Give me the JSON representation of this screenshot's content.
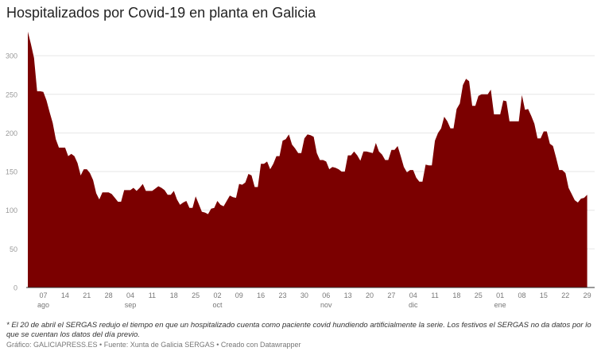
{
  "chart_data": {
    "type": "area",
    "title": "Hospitalizados por Covid-19 en planta en Galicia",
    "xlabel": "",
    "ylabel": "",
    "color": "#7b0000",
    "ylim": [
      0,
      330
    ],
    "yticks": [
      0,
      50,
      100,
      150,
      200,
      250,
      300
    ],
    "grid": true,
    "x_unit": "days since 2 ago",
    "xticks": [
      {
        "day": 5,
        "label": "07",
        "month": "ago"
      },
      {
        "day": 12,
        "label": "14"
      },
      {
        "day": 19,
        "label": "21"
      },
      {
        "day": 26,
        "label": "28"
      },
      {
        "day": 33,
        "label": "04",
        "month": "sep"
      },
      {
        "day": 40,
        "label": "11"
      },
      {
        "day": 47,
        "label": "18"
      },
      {
        "day": 54,
        "label": "25"
      },
      {
        "day": 61,
        "label": "02",
        "month": "oct"
      },
      {
        "day": 68,
        "label": "09"
      },
      {
        "day": 75,
        "label": "16"
      },
      {
        "day": 82,
        "label": "23"
      },
      {
        "day": 89,
        "label": "30"
      },
      {
        "day": 96,
        "label": "06",
        "month": "nov"
      },
      {
        "day": 103,
        "label": "13"
      },
      {
        "day": 110,
        "label": "20"
      },
      {
        "day": 117,
        "label": "27"
      },
      {
        "day": 124,
        "label": "04",
        "month": "dic"
      },
      {
        "day": 131,
        "label": "11"
      },
      {
        "day": 138,
        "label": "18"
      },
      {
        "day": 145,
        "label": "25"
      },
      {
        "day": 152,
        "label": "01",
        "month": "ene"
      },
      {
        "day": 159,
        "label": "08"
      },
      {
        "day": 166,
        "label": "15"
      },
      {
        "day": 173,
        "label": "22"
      },
      {
        "day": 180,
        "label": "29"
      }
    ],
    "values": [
      331,
      315,
      297,
      254,
      254,
      253,
      242,
      227,
      213,
      192,
      181,
      181,
      181,
      170,
      173,
      170,
      161,
      145,
      153,
      153,
      148,
      139,
      122,
      114,
      123,
      123,
      123,
      121,
      116,
      111,
      111,
      126,
      126,
      126,
      129,
      125,
      129,
      134,
      125,
      125,
      125,
      128,
      131,
      129,
      126,
      120,
      120,
      125,
      114,
      107,
      110,
      112,
      103,
      103,
      118,
      108,
      98,
      97,
      95,
      102,
      103,
      112,
      107,
      105,
      112,
      119,
      117,
      116,
      134,
      133,
      136,
      147,
      145,
      130,
      130,
      160,
      160,
      163,
      153,
      160,
      170,
      170,
      190,
      192,
      198,
      185,
      180,
      174,
      174,
      193,
      198,
      197,
      195,
      174,
      165,
      165,
      163,
      153,
      156,
      155,
      153,
      150,
      150,
      171,
      171,
      176,
      171,
      164,
      176,
      176,
      175,
      174,
      187,
      176,
      172,
      165,
      165,
      178,
      178,
      183,
      170,
      156,
      149,
      152,
      152,
      142,
      137,
      137,
      159,
      158,
      158,
      190,
      200,
      206,
      221,
      215,
      206,
      206,
      231,
      238,
      262,
      270,
      267,
      235,
      235,
      248,
      250,
      250,
      250,
      256,
      224,
      224,
      224,
      242,
      241,
      215,
      215,
      215,
      215,
      249,
      230,
      231,
      222,
      212,
      193,
      193,
      202,
      202,
      186,
      183,
      168,
      152,
      152,
      148,
      129,
      121,
      113,
      110,
      115,
      116,
      120
    ]
  },
  "footnote": "* El 20 de abril el SERGAS redujo el tiempo en que un hospitalizado cuenta como paciente covid hundiendo artificialmente la serie. Los festivos el SERGAS no da datos por lo que se cuentan los datos del día previo.",
  "credits": "Gráfico: GALICIAPRESS.ES • Fuente: Xunta de Galicia SERGAS • Creado con Datawrapper"
}
